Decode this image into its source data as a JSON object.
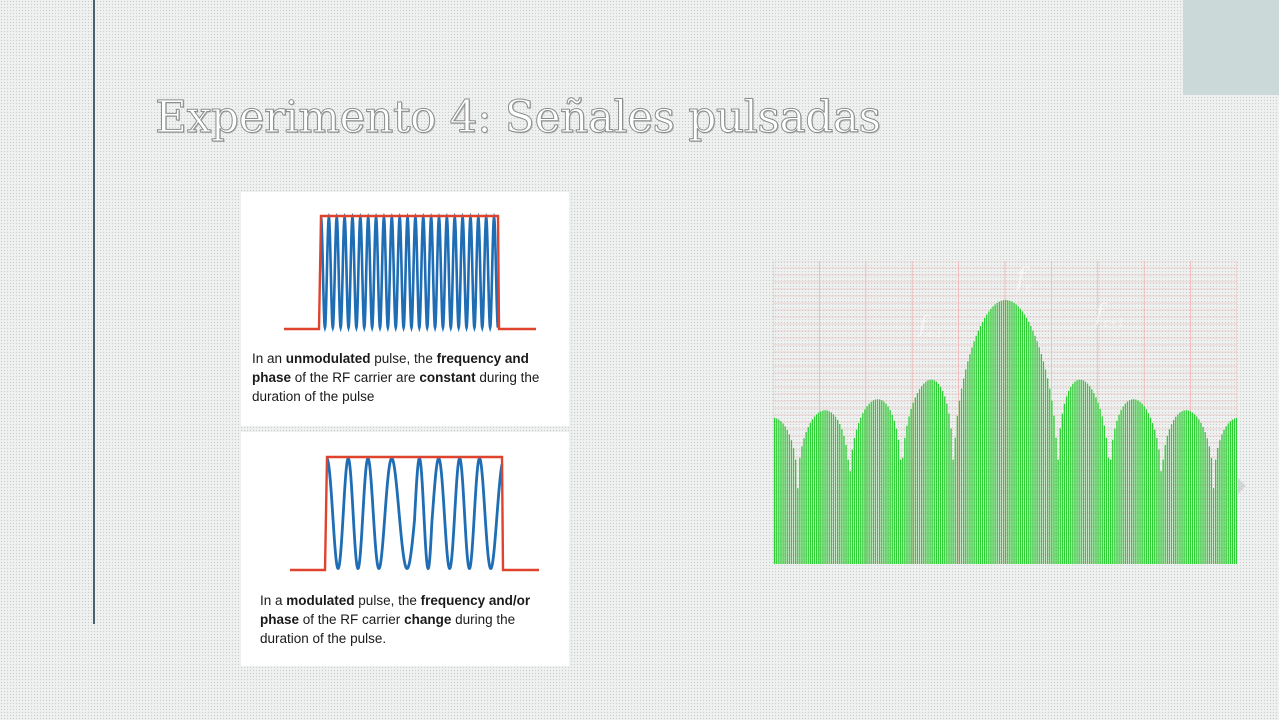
{
  "slide": {
    "title": "Experimento 4: Señales pulsadas"
  },
  "panels": {
    "unmodulated": {
      "caption": [
        {
          "t": "In an ",
          "b": false
        },
        {
          "t": "unmodulated",
          "b": true
        },
        {
          "t": " pulse, the ",
          "b": false
        },
        {
          "t": "frequency and phase",
          "b": true
        },
        {
          "t": " of the RF carrier are ",
          "b": false
        },
        {
          "t": "constant",
          "b": true
        },
        {
          "t": " during the duration of the pulse",
          "b": false
        }
      ]
    },
    "modulated": {
      "caption": [
        {
          "t": "In a ",
          "b": false
        },
        {
          "t": "modulated",
          "b": true
        },
        {
          "t": " pulse, the ",
          "b": false
        },
        {
          "t": "frequency and/or phase",
          "b": true
        },
        {
          "t": " of the RF carrier ",
          "b": false
        },
        {
          "t": "change",
          "b": true
        },
        {
          "t": " during the duration of the pulse.",
          "b": false
        }
      ]
    }
  },
  "spectrum": {
    "labels": {
      "center": "f",
      "center_sub": "c",
      "left": "f",
      "left_sub": "c-1",
      "right": "f",
      "right_sub": "c+1"
    }
  },
  "colors": {
    "pulse_envelope": "#e0432d",
    "carrier": "#1f6db4",
    "spectrum_bars": "#2ecc35",
    "grid": "#f0b4b4"
  }
}
